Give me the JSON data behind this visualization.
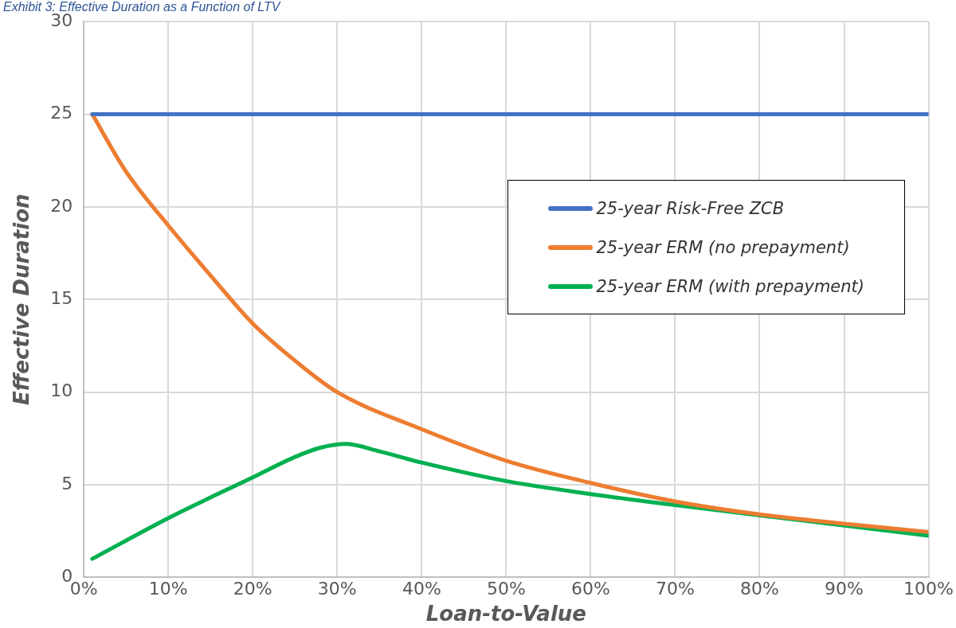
{
  "chart_data": {
    "type": "line",
    "title": "Exhibit 3: Effective Duration as a Function of LTV",
    "xlabel": "Loan-to-Value",
    "ylabel": "Effective Duration",
    "xlim": [
      0,
      100
    ],
    "xticks": [
      {
        "value": 0,
        "label": "0%"
      },
      {
        "value": 10,
        "label": "10%"
      },
      {
        "value": 20,
        "label": "20%"
      },
      {
        "value": 30,
        "label": "30%"
      },
      {
        "value": 40,
        "label": "40%"
      },
      {
        "value": 50,
        "label": "50%"
      },
      {
        "value": 60,
        "label": "60%"
      },
      {
        "value": 70,
        "label": "70%"
      },
      {
        "value": 80,
        "label": "80%"
      },
      {
        "value": 90,
        "label": "90%"
      },
      {
        "value": 100,
        "label": "100%"
      }
    ],
    "ylim": [
      0,
      30
    ],
    "yticks": [
      0,
      5,
      10,
      15,
      20,
      25,
      30
    ],
    "grid": true,
    "legend": "right",
    "marker": "none",
    "line_style": "solid",
    "series": [
      {
        "name": "25-year Risk-Free ZCB",
        "color": "#4472c4",
        "x": [
          1,
          100
        ],
        "values": [
          25,
          25
        ]
      },
      {
        "name": "25-year ERM (no prepayment)",
        "color": "#ed7d31",
        "x": [
          1,
          5,
          10,
          15,
          20,
          25,
          30,
          40,
          50,
          60,
          70,
          80,
          90,
          100
        ],
        "values": [
          25,
          21.9,
          19.0,
          16.3,
          13.7,
          11.7,
          10.0,
          8.0,
          6.3,
          5.1,
          4.1,
          3.4,
          2.9,
          2.45
        ]
      },
      {
        "name": "25-year ERM (with prepayment)",
        "color": "#00b050",
        "x": [
          1,
          10,
          20,
          25,
          28,
          31,
          35,
          40,
          50,
          60,
          70,
          80,
          90,
          100
        ],
        "values": [
          1.0,
          3.2,
          5.4,
          6.5,
          7.0,
          7.2,
          6.8,
          6.2,
          5.2,
          4.5,
          3.9,
          3.35,
          2.8,
          2.25
        ]
      }
    ]
  }
}
